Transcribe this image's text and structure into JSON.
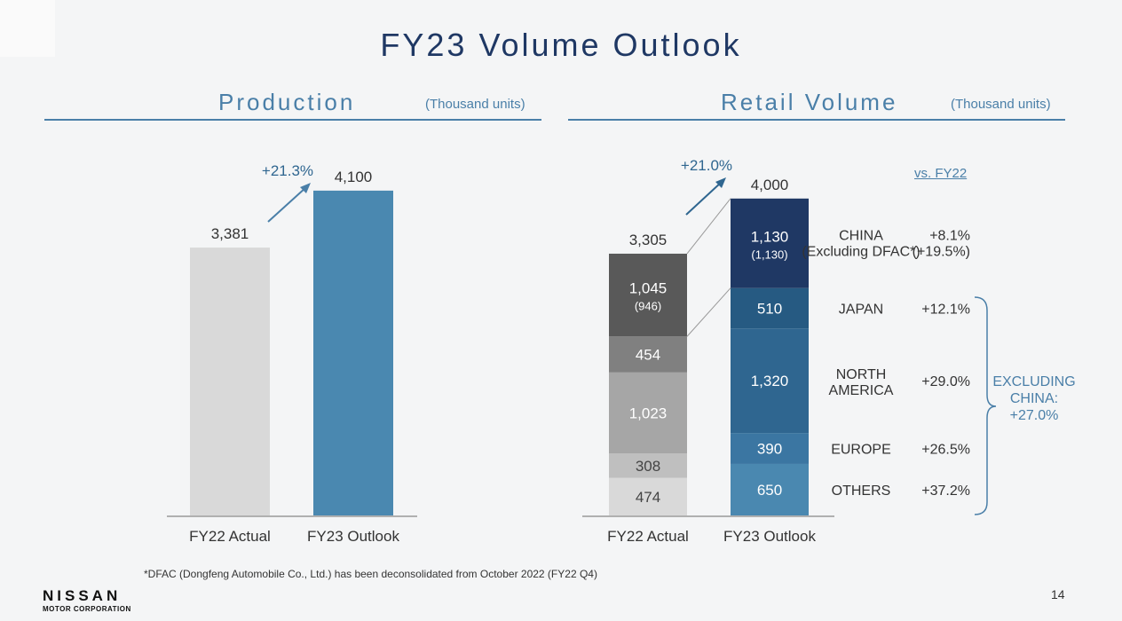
{
  "title": "FY23 Volume Outlook",
  "production": {
    "heading": "Production",
    "unit": "(Thousand units)"
  },
  "retail": {
    "heading": "Retail Volume",
    "unit": "(Thousand units)",
    "vs_label": "vs. FY22",
    "excluding_china": [
      "EXCLUDING",
      "CHINA:",
      "+27.0%"
    ]
  },
  "footnote": "*DFAC (Dongfeng Automobile Co., Ltd.) has been deconsolidated from October 2022 (FY22 Q4)",
  "logo": {
    "name": "NISSAN",
    "sub": "MOTOR CORPORATION"
  },
  "page_number": "14",
  "chart_data": [
    {
      "type": "bar",
      "title": "Production",
      "unit": "Thousand units",
      "categories": [
        "FY22 Actual",
        "FY23 Outlook"
      ],
      "values": [
        3381,
        4100
      ],
      "value_labels": [
        "3,381",
        "4,100"
      ],
      "colors": [
        "#d9d9d9",
        "#4a88b0"
      ],
      "growth_label": "+21.3%"
    },
    {
      "type": "bar",
      "stacked": true,
      "title": "Retail Volume",
      "unit": "Thousand units",
      "categories": [
        "FY22 Actual",
        "FY23 Outlook"
      ],
      "totals": [
        3305,
        4000
      ],
      "total_labels": [
        "3,305",
        "4,000"
      ],
      "growth_label": "+21.0%",
      "series": [
        {
          "name": "OTHERS",
          "values": [
            474,
            650
          ],
          "labels": [
            "474",
            "650"
          ],
          "colors": [
            "#d9d9d9",
            "#4a88b0"
          ],
          "growth": "+37.2%"
        },
        {
          "name": "EUROPE",
          "values": [
            308,
            390
          ],
          "labels": [
            "308",
            "390"
          ],
          "colors": [
            "#bfbfbf",
            "#3b76a2"
          ],
          "growth": "+26.5%"
        },
        {
          "name": "NORTH AMERICA",
          "name_lines": [
            "NORTH",
            "AMERICA"
          ],
          "values": [
            1023,
            1320
          ],
          "labels": [
            "1,023",
            "1,320"
          ],
          "colors": [
            "#a6a6a6",
            "#2f6690"
          ],
          "growth": "+29.0%"
        },
        {
          "name": "JAPAN",
          "values": [
            454,
            510
          ],
          "labels": [
            "454",
            "510"
          ],
          "colors": [
            "#808080",
            "#265a82"
          ],
          "growth": "+12.1%"
        },
        {
          "name": "CHINA",
          "sub_name": "(Excluding DFAC*)",
          "values": [
            1045,
            1130
          ],
          "labels": [
            "1,045",
            "1,130"
          ],
          "sub_labels": [
            "(946)",
            "(1,130)"
          ],
          "colors": [
            "#595959",
            "#1f3864"
          ],
          "growth": "+8.1%",
          "sub_growth": "(+19.5%)"
        }
      ]
    }
  ]
}
